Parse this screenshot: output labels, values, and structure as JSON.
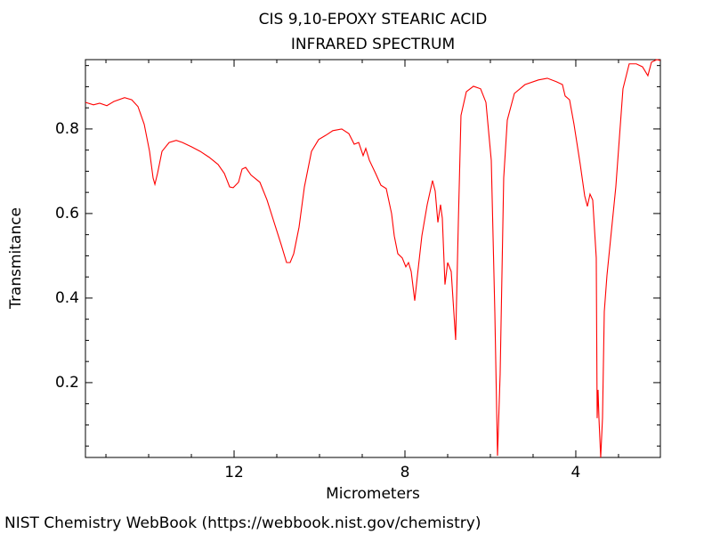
{
  "chart_data": {
    "type": "line",
    "title": "CIS 9,10-EPOXY STEARIC ACID",
    "subtitle": "INFRARED SPECTRUM",
    "xlabel": "Micrometers",
    "ylabel": "Transmitance",
    "footer": "NIST Chemistry WebBook (https://webbook.nist.gov/chemistry)",
    "xlim": [
      15.48,
      2.02
    ],
    "ylim": [
      0.023,
      0.964
    ],
    "xticks": [
      12,
      8,
      4
    ],
    "yticks": [
      0.2,
      0.4,
      0.6,
      0.8
    ],
    "xminorticks": [
      15,
      14,
      13,
      11,
      10,
      9,
      7,
      6,
      5,
      3
    ],
    "yminorticks": [
      0.05,
      0.1,
      0.15,
      0.25,
      0.3,
      0.35,
      0.45,
      0.5,
      0.55,
      0.65,
      0.7,
      0.75,
      0.85,
      0.9,
      0.95
    ],
    "series": [
      {
        "color": "#ff0000",
        "x": [
          15.479,
          15.292,
          15.146,
          14.979,
          14.813,
          14.563,
          14.396,
          14.25,
          14.104,
          13.979,
          13.896,
          13.854,
          13.792,
          13.688,
          13.521,
          13.354,
          13.208,
          13.0,
          12.792,
          12.583,
          12.375,
          12.229,
          12.104,
          12.021,
          11.896,
          11.813,
          11.729,
          11.604,
          11.396,
          11.229,
          11.063,
          10.896,
          10.771,
          10.688,
          10.604,
          10.479,
          10.354,
          10.188,
          10.021,
          9.854,
          9.688,
          9.479,
          9.313,
          9.188,
          9.083,
          8.979,
          8.917,
          8.833,
          8.688,
          8.563,
          8.438,
          8.313,
          8.25,
          8.167,
          8.063,
          7.979,
          7.917,
          7.854,
          7.771,
          7.708,
          7.604,
          7.479,
          7.354,
          7.292,
          7.229,
          7.167,
          7.125,
          7.063,
          7.0,
          6.917,
          6.813,
          6.75,
          6.688,
          6.563,
          6.396,
          6.229,
          6.104,
          5.979,
          5.896,
          5.833,
          5.771,
          5.688,
          5.604,
          5.438,
          5.188,
          4.875,
          4.667,
          4.458,
          4.313,
          4.25,
          4.146,
          4.042,
          3.896,
          3.792,
          3.729,
          3.667,
          3.604,
          3.521,
          3.5,
          3.479,
          3.458,
          3.417,
          3.375,
          3.333,
          3.271,
          3.188,
          3.063,
          2.896,
          2.75,
          2.583,
          2.438,
          2.313,
          2.229,
          2.104,
          2.021
        ],
        "values": [
          0.863,
          0.857,
          0.861,
          0.855,
          0.865,
          0.874,
          0.869,
          0.853,
          0.811,
          0.747,
          0.684,
          0.669,
          0.695,
          0.747,
          0.768,
          0.773,
          0.768,
          0.758,
          0.747,
          0.733,
          0.716,
          0.695,
          0.663,
          0.661,
          0.674,
          0.705,
          0.709,
          0.691,
          0.674,
          0.632,
          0.579,
          0.526,
          0.484,
          0.484,
          0.505,
          0.568,
          0.663,
          0.747,
          0.775,
          0.785,
          0.796,
          0.8,
          0.789,
          0.764,
          0.768,
          0.737,
          0.754,
          0.726,
          0.695,
          0.667,
          0.659,
          0.6,
          0.547,
          0.505,
          0.495,
          0.474,
          0.484,
          0.463,
          0.394,
          0.453,
          0.547,
          0.621,
          0.678,
          0.653,
          0.579,
          0.621,
          0.589,
          0.432,
          0.484,
          0.463,
          0.301,
          0.579,
          0.832,
          0.888,
          0.901,
          0.895,
          0.863,
          0.726,
          0.368,
          0.027,
          0.221,
          0.684,
          0.821,
          0.884,
          0.905,
          0.916,
          0.92,
          0.912,
          0.905,
          0.878,
          0.869,
          0.811,
          0.716,
          0.642,
          0.617,
          0.646,
          0.632,
          0.495,
          0.116,
          0.183,
          0.116,
          0.023,
          0.116,
          0.368,
          0.453,
          0.537,
          0.663,
          0.895,
          0.954,
          0.954,
          0.947,
          0.926,
          0.958,
          0.964,
          0.962
        ]
      }
    ]
  }
}
